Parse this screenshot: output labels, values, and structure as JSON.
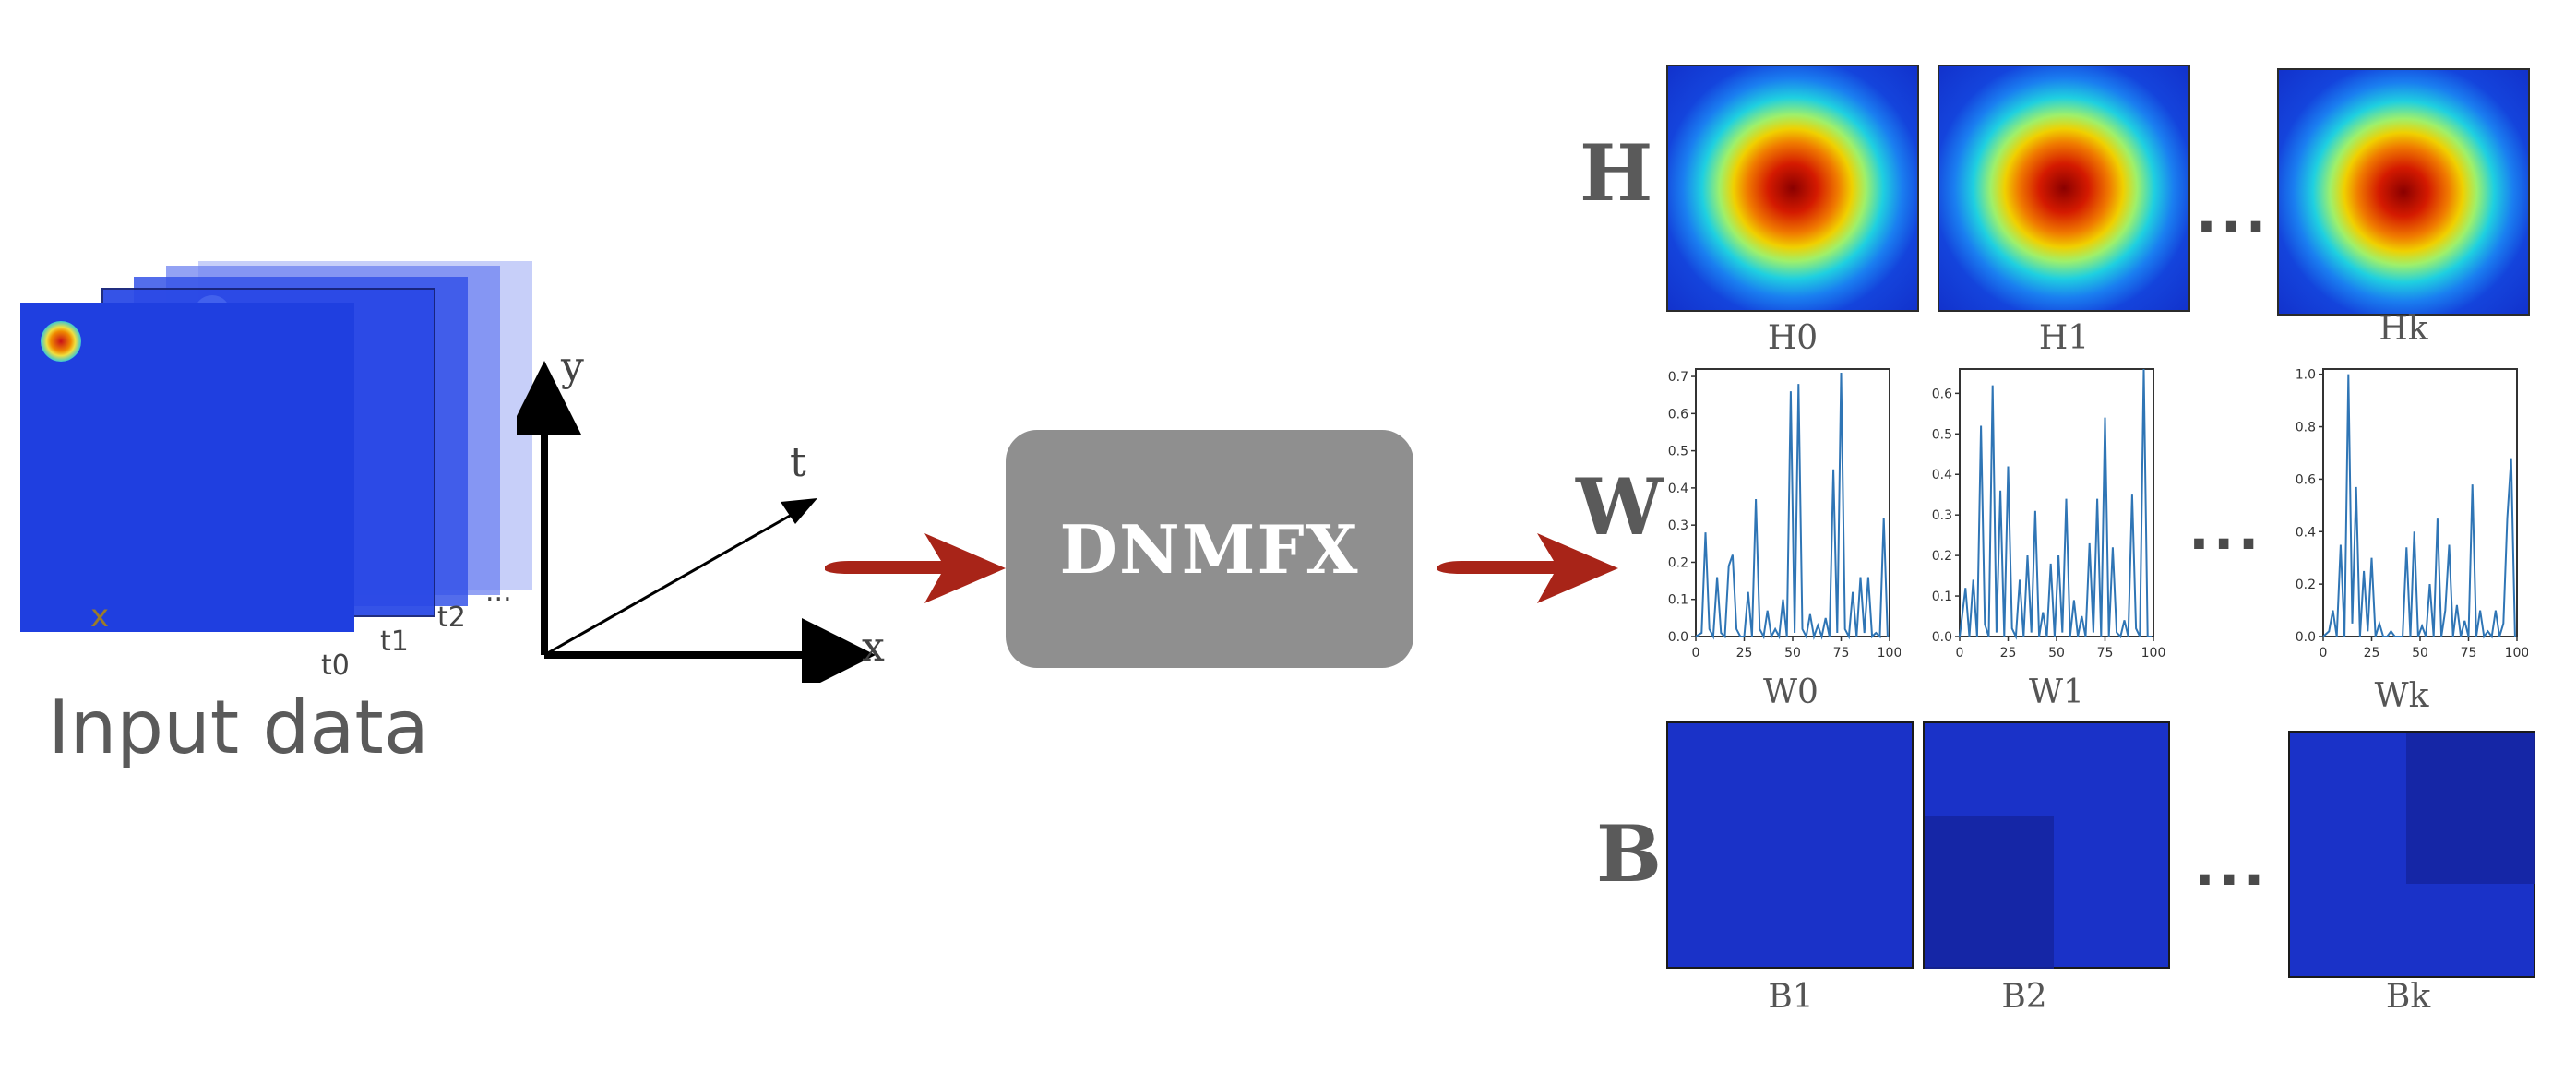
{
  "input": {
    "title": "Input data",
    "frame_labels": [
      "t0",
      "t1",
      "t2",
      "..."
    ],
    "x_marker": "x"
  },
  "axes": {
    "x": "x",
    "y": "y",
    "t": "t"
  },
  "model": {
    "label": "DNMFX"
  },
  "outputs": {
    "H": {
      "label": "H",
      "items": [
        "H0",
        "H1",
        "Hk"
      ],
      "ellipsis": "..."
    },
    "W": {
      "label": "W",
      "items": [
        "W0",
        "W1",
        "Wk"
      ],
      "ellipsis": "..."
    },
    "B": {
      "label": "B",
      "items": [
        "B1",
        "B2",
        "Bk"
      ],
      "ellipsis": "..."
    }
  },
  "colors": {
    "arrow": "#a82418",
    "model_box": "#8f8f8f",
    "line": "#2f75b5"
  },
  "chart_data": [
    {
      "type": "line",
      "name": "W0",
      "xlim": [
        0,
        100
      ],
      "ylim": [
        0,
        0.72
      ],
      "xticks": [
        0,
        25,
        50,
        75,
        100
      ],
      "yticks": [
        0.0,
        0.1,
        0.2,
        0.3,
        0.4,
        0.5,
        0.6,
        0.7
      ],
      "x": [
        0,
        3,
        5,
        7,
        9,
        11,
        13,
        15,
        17,
        19,
        21,
        23,
        25,
        27,
        29,
        31,
        33,
        35,
        37,
        39,
        41,
        43,
        45,
        47,
        49,
        51,
        53,
        55,
        57,
        59,
        61,
        63,
        65,
        67,
        69,
        71,
        73,
        75,
        77,
        79,
        81,
        83,
        85,
        87,
        89,
        91,
        93,
        95,
        97,
        99
      ],
      "y": [
        0.0,
        0.01,
        0.28,
        0.02,
        0.0,
        0.16,
        0.01,
        0.0,
        0.19,
        0.22,
        0.02,
        0.0,
        0.0,
        0.12,
        0.0,
        0.37,
        0.02,
        0.0,
        0.07,
        0.0,
        0.02,
        0.0,
        0.1,
        0.0,
        0.66,
        0.01,
        0.68,
        0.02,
        0.0,
        0.06,
        0.0,
        0.03,
        0.0,
        0.05,
        0.0,
        0.45,
        0.01,
        0.71,
        0.02,
        0.0,
        0.12,
        0.0,
        0.16,
        0.01,
        0.16,
        0.0,
        0.01,
        0.0,
        0.32,
        0.0
      ]
    },
    {
      "type": "line",
      "name": "W1",
      "xlim": [
        0,
        100
      ],
      "ylim": [
        0,
        0.66
      ],
      "xticks": [
        0,
        25,
        50,
        75,
        100
      ],
      "yticks": [
        0.0,
        0.1,
        0.2,
        0.3,
        0.4,
        0.5,
        0.6
      ],
      "x": [
        0,
        3,
        5,
        7,
        9,
        11,
        13,
        15,
        17,
        19,
        21,
        23,
        25,
        27,
        29,
        31,
        33,
        35,
        37,
        39,
        41,
        43,
        45,
        47,
        49,
        51,
        53,
        55,
        57,
        59,
        61,
        63,
        65,
        67,
        69,
        71,
        73,
        75,
        77,
        79,
        81,
        83,
        85,
        87,
        89,
        91,
        93,
        95,
        97,
        99
      ],
      "y": [
        0.0,
        0.12,
        0.0,
        0.14,
        0.0,
        0.52,
        0.03,
        0.0,
        0.62,
        0.01,
        0.36,
        0.0,
        0.42,
        0.02,
        0.0,
        0.14,
        0.0,
        0.2,
        0.01,
        0.31,
        0.0,
        0.06,
        0.0,
        0.18,
        0.0,
        0.2,
        0.01,
        0.34,
        0.0,
        0.09,
        0.0,
        0.05,
        0.0,
        0.23,
        0.01,
        0.34,
        0.0,
        0.54,
        0.0,
        0.22,
        0.01,
        0.0,
        0.04,
        0.0,
        0.35,
        0.02,
        0.0,
        0.66,
        0.0,
        0.0
      ]
    },
    {
      "type": "line",
      "name": "Wk",
      "xlim": [
        0,
        100
      ],
      "ylim": [
        0,
        1.02
      ],
      "xticks": [
        0,
        25,
        50,
        75,
        100
      ],
      "yticks": [
        0.0,
        0.2,
        0.4,
        0.6,
        0.8,
        1.0
      ],
      "x": [
        0,
        3,
        5,
        7,
        9,
        11,
        13,
        15,
        17,
        19,
        21,
        23,
        25,
        27,
        29,
        31,
        33,
        35,
        37,
        39,
        41,
        43,
        45,
        47,
        49,
        51,
        53,
        55,
        57,
        59,
        61,
        63,
        65,
        67,
        69,
        71,
        73,
        75,
        77,
        79,
        81,
        83,
        85,
        87,
        89,
        91,
        93,
        95,
        97,
        99
      ],
      "y": [
        0.0,
        0.02,
        0.1,
        0.0,
        0.35,
        0.0,
        1.0,
        0.05,
        0.57,
        0.0,
        0.25,
        0.02,
        0.3,
        0.0,
        0.05,
        0.0,
        0.0,
        0.02,
        0.0,
        0.0,
        0.0,
        0.34,
        0.0,
        0.4,
        0.0,
        0.04,
        0.0,
        0.2,
        0.0,
        0.45,
        0.0,
        0.1,
        0.35,
        0.0,
        0.12,
        0.0,
        0.06,
        0.0,
        0.58,
        0.0,
        0.1,
        0.0,
        0.02,
        0.0,
        0.1,
        0.0,
        0.05,
        0.45,
        0.68,
        0.0
      ]
    }
  ]
}
